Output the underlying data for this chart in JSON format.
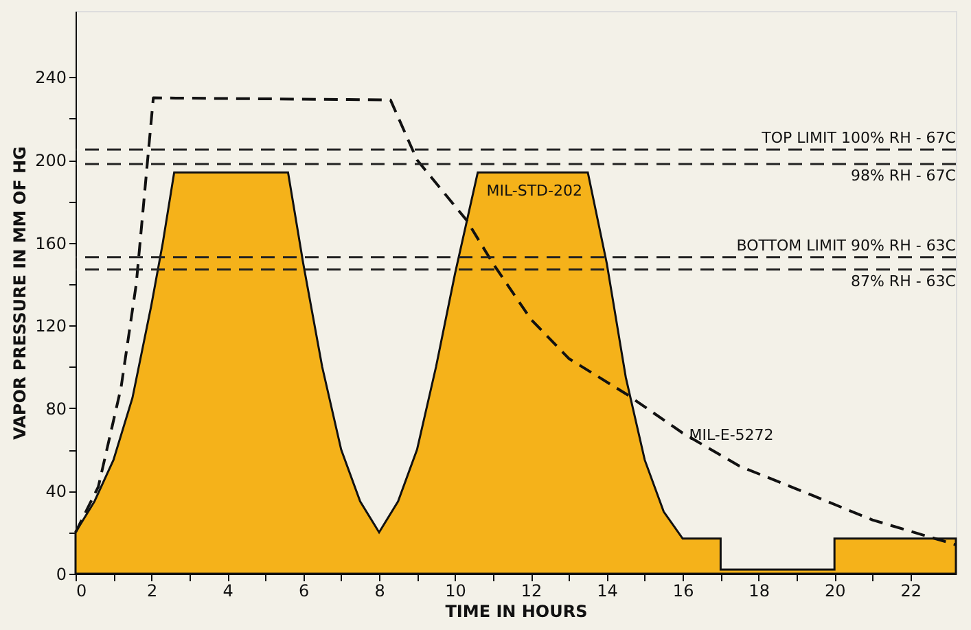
{
  "chart_data": {
    "type": "area",
    "xlabel": "TIME IN HOURS",
    "ylabel": "VAPOR PRESSURE IN MM OF HG",
    "xlim": [
      0,
      23.2
    ],
    "ylim": [
      0,
      272
    ],
    "xticks": [
      0,
      {
        "value": 1,
        "label": null
      },
      2,
      {
        "value": 3,
        "label": null
      },
      4,
      {
        "value": 5,
        "label": null
      },
      6,
      {
        "value": 7,
        "label": null
      },
      8,
      {
        "value": 9,
        "label": null
      },
      10,
      {
        "value": 11,
        "label": null
      },
      12,
      {
        "value": 13,
        "label": null
      },
      14,
      {
        "value": 15,
        "label": null
      },
      16,
      {
        "value": 17,
        "label": null
      },
      18,
      {
        "value": 19,
        "label": null
      },
      20,
      {
        "value": 21,
        "label": null
      },
      22
    ],
    "yticks": [
      0,
      {
        "value": 20,
        "label": null
      },
      40,
      {
        "value": 60,
        "label": null
      },
      80,
      {
        "value": 100,
        "label": null
      },
      120,
      {
        "value": 140,
        "label": null
      },
      160,
      {
        "value": 180,
        "label": null
      },
      200,
      {
        "value": 220,
        "label": null
      },
      240
    ],
    "grid": false,
    "legend": false,
    "series": [
      {
        "name": "MIL-STD-202",
        "color": "#f5b21a",
        "x": [
          0,
          0.5,
          1,
          1.5,
          2,
          2.3,
          2.6,
          5.6,
          6,
          6.5,
          7,
          7.5,
          8,
          8.5,
          9,
          9.5,
          10,
          10.6,
          13.5,
          14,
          14.5,
          15,
          15.5,
          16,
          17,
          17,
          20,
          20,
          23.2
        ],
        "values": [
          20,
          35,
          55,
          85,
          130,
          160,
          194,
          194,
          150,
          100,
          60,
          35,
          20,
          35,
          60,
          100,
          145,
          194,
          194,
          150,
          95,
          55,
          30,
          17,
          17,
          2,
          2,
          17,
          17
        ]
      },
      {
        "name": "MIL-E-5272",
        "type": "line",
        "line_style": "dashed",
        "color": "#111111",
        "x": [
          0,
          0.6,
          1.2,
          1.6,
          2.05,
          8.3,
          9,
          10.3,
          11,
          12,
          13,
          14.5,
          16,
          17.5,
          19.4,
          21,
          23.2
        ],
        "values": [
          20,
          42,
          90,
          140,
          230,
          229,
          200,
          171,
          150,
          123,
          104,
          87,
          68,
          52,
          38,
          26,
          14
        ]
      }
    ],
    "ref_lines": [
      {
        "axis": "y",
        "value": 205,
        "label": "TOP LIMIT 100% RH - 67C",
        "color": "#222222",
        "line_style": "dashed"
      },
      {
        "axis": "y",
        "value": 198,
        "label": "98% RH - 67C",
        "color": "#222222",
        "line_style": "dashed"
      },
      {
        "axis": "y",
        "value": 153,
        "label": "BOTTOM LIMIT 90% RH - 63C",
        "color": "#222222",
        "line_style": "dashed"
      },
      {
        "axis": "y",
        "value": 147,
        "label": "87% RH - 63C",
        "color": "#222222",
        "line_style": "dashed"
      }
    ]
  }
}
